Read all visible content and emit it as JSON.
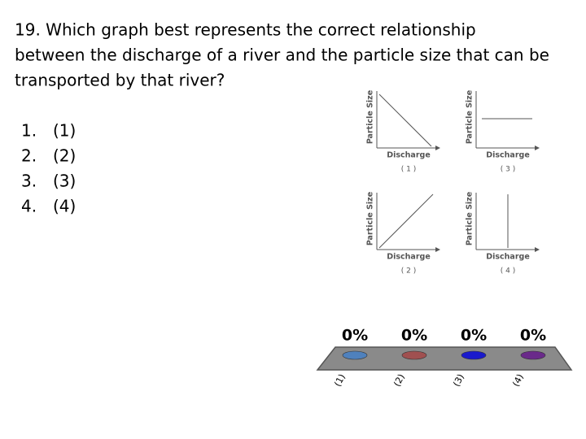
{
  "question": [
    "19. Which graph best represents the correct relationship",
    "between the discharge of a river and the particle size that can be",
    "transported by that river?"
  ],
  "options": [
    {
      "number": "1.",
      "label": "(1)"
    },
    {
      "number": "2.",
      "label": "(2)"
    },
    {
      "number": "3.",
      "label": "(3)"
    },
    {
      "number": "4.",
      "label": "(4)"
    }
  ],
  "graphs": [
    {
      "y_label": "Particle Size",
      "x_label": "Discharge",
      "caption": "( 1 )"
    },
    {
      "y_label": "Particle Size",
      "x_label": "Discharge",
      "caption": "( 3 )"
    },
    {
      "y_label": "Particle Size",
      "x_label": "Discharge",
      "caption": "( 2 )"
    },
    {
      "y_label": "Particle Size",
      "x_label": "Discharge",
      "caption": "( 4 )"
    }
  ],
  "poll": [
    {
      "label": "(1)",
      "result": "0%",
      "color": "#4f81bd"
    },
    {
      "label": "(2)",
      "result": "0%",
      "color": "#a05050"
    },
    {
      "label": "(3)",
      "result": "0%",
      "color": "#1a1acc"
    },
    {
      "label": "(4)",
      "result": "0%",
      "color": "#6a2a8a"
    }
  ]
}
